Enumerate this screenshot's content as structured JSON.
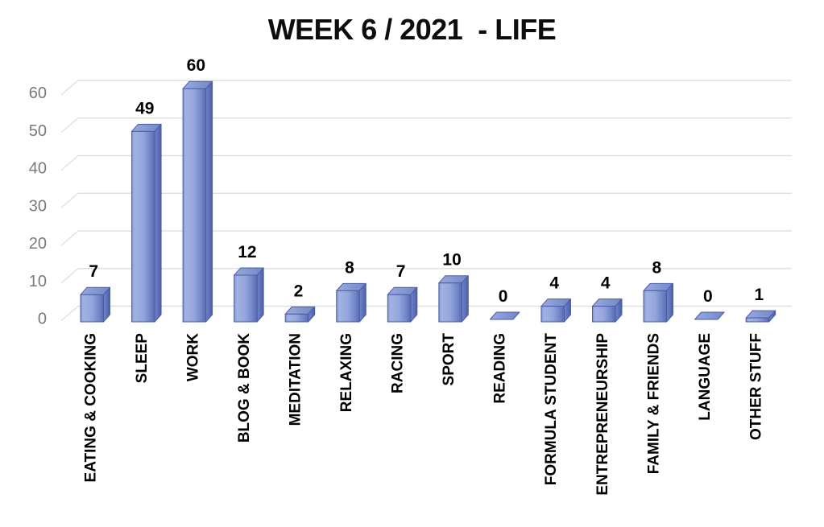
{
  "chart_data": {
    "type": "bar",
    "style": "3d-column",
    "title": "WEEK 6 / 2021  - LIFE",
    "categories": [
      "EATING & COOKING",
      "SLEEP",
      "WORK",
      "BLOG & BOOK",
      "MEDITATION",
      "RELAXING",
      "RACING",
      "SPORT",
      "READING",
      "FORMULA STUDENT",
      "ENTREPRENEURSHIP",
      "FAMILY & FRIENDS",
      "LANGUAGE",
      "OTHER STUFF"
    ],
    "values": [
      7,
      49,
      60,
      12,
      2,
      8,
      7,
      10,
      0,
      4,
      4,
      8,
      0,
      1
    ],
    "data_labels": [
      7,
      49,
      60,
      12,
      2,
      8,
      7,
      10,
      0,
      4,
      4,
      8,
      0,
      1
    ],
    "xlabel": "",
    "ylabel": "",
    "yticks": [
      0,
      10,
      20,
      30,
      40,
      50,
      60
    ],
    "ylim": [
      0,
      60
    ],
    "grid": true,
    "legend": "none",
    "colors": {
      "title": "#0d0d0d",
      "background": "#ffffff",
      "gridline": "#e0e0e0",
      "tick_label": "#7a7a7a",
      "value_label": "#000000",
      "category_label": "#000000",
      "bar_edge": "#4a5ca6",
      "bar_front_left": "#8095d1",
      "bar_front_light": "#a3b2e3",
      "bar_front_mid": "#93a5dc",
      "bar_front_dark": "#6f84c8",
      "bar_front_edge": "#5a6bb0",
      "bar_side_light": "#7186c9",
      "bar_side_dark": "#4d5fa8",
      "bar_top_light": "#98aadd",
      "bar_top_dark": "#7387c7"
    }
  }
}
